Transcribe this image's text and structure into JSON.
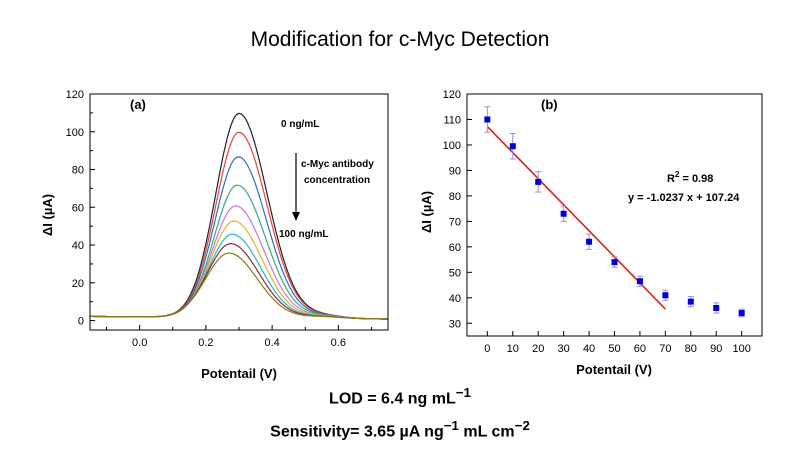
{
  "title": "Modification for c-Myc Detection",
  "metrics": {
    "lod": {
      "label": "LOD = 6.4 ng mL",
      "sup": "−1"
    },
    "sensitivity": {
      "label": "Sensitivity= 3.65 µA ng",
      "sup1": "−1",
      "mid": " mL cm",
      "sup2": "−2"
    }
  },
  "chart_data": [
    {
      "type": "line",
      "panel_label": "(a)",
      "xlabel": "Potentail (V)",
      "ylabel": "ΔI (µA)",
      "xlim": [
        -0.15,
        0.75
      ],
      "ylim": [
        -5,
        120
      ],
      "xticks": [
        0.0,
        0.2,
        0.4,
        0.6
      ],
      "xtick_labels": [
        "0.0",
        "0.2",
        "0.4",
        "0.6"
      ],
      "yticks": [
        0,
        20,
        40,
        60,
        80,
        100,
        120
      ],
      "ytick_labels": [
        "0",
        "20",
        "40",
        "60",
        "80",
        "100",
        "120"
      ],
      "annotations": {
        "top": "0 ng/mL",
        "middle": [
          "c-Myc antibody",
          "concentration"
        ],
        "bottom": "100 ng/mL"
      },
      "series": [
        {
          "peak": 110,
          "peak_x": 0.3,
          "color": "#222222"
        },
        {
          "peak": 100,
          "peak_x": 0.3,
          "color": "#e8403a"
        },
        {
          "peak": 87,
          "peak_x": 0.298,
          "color": "#2e6fb7"
        },
        {
          "peak": 72,
          "peak_x": 0.295,
          "color": "#3aa77e"
        },
        {
          "peak": 61,
          "peak_x": 0.29,
          "color": "#c47ad8"
        },
        {
          "peak": 53,
          "peak_x": 0.285,
          "color": "#e8b126"
        },
        {
          "peak": 46,
          "peak_x": 0.28,
          "color": "#29b5d6"
        },
        {
          "peak": 41,
          "peak_x": 0.275,
          "color": "#8b2b3a"
        },
        {
          "peak": 36,
          "peak_x": 0.27,
          "color": "#8a7a12"
        }
      ]
    },
    {
      "type": "scatter",
      "panel_label": "(b)",
      "xlabel": "Potentail (V)",
      "ylabel": "ΔI (µA)",
      "xlim": [
        -8,
        108
      ],
      "ylim": [
        25,
        120
      ],
      "xticks": [
        0,
        10,
        20,
        30,
        40,
        50,
        60,
        70,
        80,
        90,
        100
      ],
      "xtick_labels": [
        "0",
        "10",
        "20",
        "30",
        "40",
        "50",
        "60",
        "70",
        "80",
        "90",
        "100"
      ],
      "yticks": [
        30,
        40,
        50,
        60,
        70,
        80,
        90,
        100,
        110,
        120
      ],
      "ytick_labels": [
        "30",
        "40",
        "50",
        "60",
        "70",
        "80",
        "90",
        "100",
        "110",
        "120"
      ],
      "points": {
        "x": [
          0,
          10,
          20,
          30,
          40,
          50,
          60,
          70,
          80,
          90,
          100
        ],
        "y": [
          110,
          99.5,
          85.5,
          73,
          62,
          54,
          46.5,
          41,
          38.5,
          36,
          34
        ],
        "err": [
          5,
          5,
          4,
          3,
          3,
          2,
          2,
          2,
          2,
          2,
          1.5
        ]
      },
      "fit": {
        "slope": -1.0237,
        "intercept": 107.24,
        "x_range": [
          0,
          70
        ],
        "color": "#e0201b"
      },
      "marker_color": "#0000dd",
      "errorbar_color": "#9a8fd6",
      "annotations": {
        "r2_main": "R",
        "r2_sup": "2",
        "r2_rest": " = 0.98",
        "equation": "y = -1.0237 x + 107.24"
      }
    }
  ]
}
